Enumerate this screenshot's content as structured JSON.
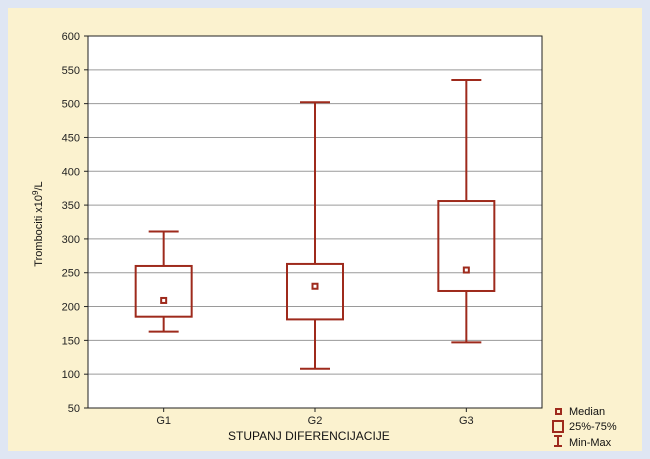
{
  "chart_data": {
    "type": "box",
    "categories": [
      "G1",
      "G2",
      "G3"
    ],
    "boxes": [
      {
        "name": "G1",
        "min": 163,
        "q1": 185,
        "median": 209,
        "q3": 260,
        "max": 311
      },
      {
        "name": "G2",
        "min": 108,
        "q1": 181,
        "median": 230,
        "q3": 263,
        "max": 502
      },
      {
        "name": "G3",
        "min": 147,
        "q1": 223,
        "median": 254,
        "q3": 356,
        "max": 535
      }
    ],
    "xlabel": "STUPANJ DIFERENCIJACIJE",
    "ylabel_base": "Trombociti x10",
    "ylabel_sup": "9",
    "ylabel_unit": "/L",
    "ylim": [
      50,
      600
    ],
    "yticks": [
      "50",
      "100",
      "150",
      "200",
      "250",
      "300",
      "350",
      "400",
      "450",
      "500",
      "550",
      "600"
    ],
    "grid": true,
    "legend": {
      "position": "bottom-right",
      "entries": [
        "Median",
        "25%-75%",
        "Min-Max"
      ]
    },
    "colors": {
      "box": "#9e2a1c",
      "grid": "#9a9a9a",
      "frame_bg": "#fbf2cf",
      "plot_bg": "#ffffff",
      "page_bg": "#dfe6f3"
    }
  }
}
